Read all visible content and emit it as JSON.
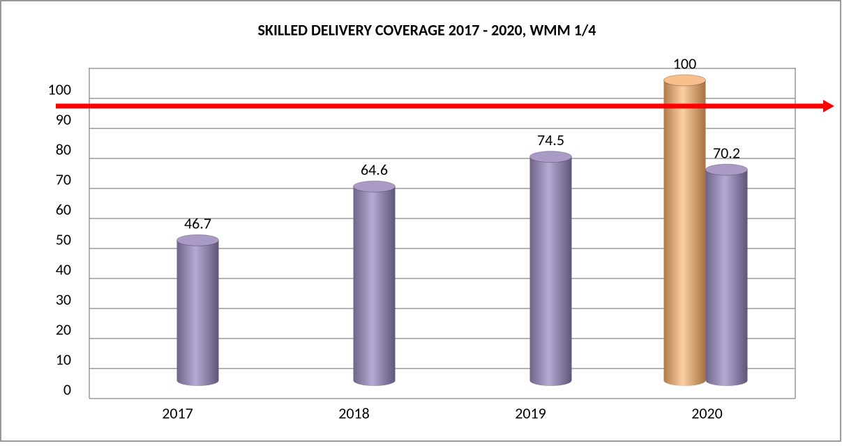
{
  "chart_data": {
    "type": "bar3d",
    "title": "SKILLED DELIVERY COVERAGE 2017 - 2020, WMM 1/4",
    "categories": [
      "2017",
      "2018",
      "2019",
      "2020"
    ],
    "series": [
      {
        "color": "#a99bc6",
        "values": [
          46.7,
          64.6,
          74.5,
          70.2
        ]
      },
      {
        "color": "#f9c08e",
        "values": [
          null,
          null,
          null,
          100
        ]
      }
    ],
    "ylim": [
      0,
      100
    ],
    "yticks": [
      0,
      10,
      20,
      30,
      40,
      50,
      60,
      70,
      80,
      90,
      100
    ],
    "grid": true
  }
}
